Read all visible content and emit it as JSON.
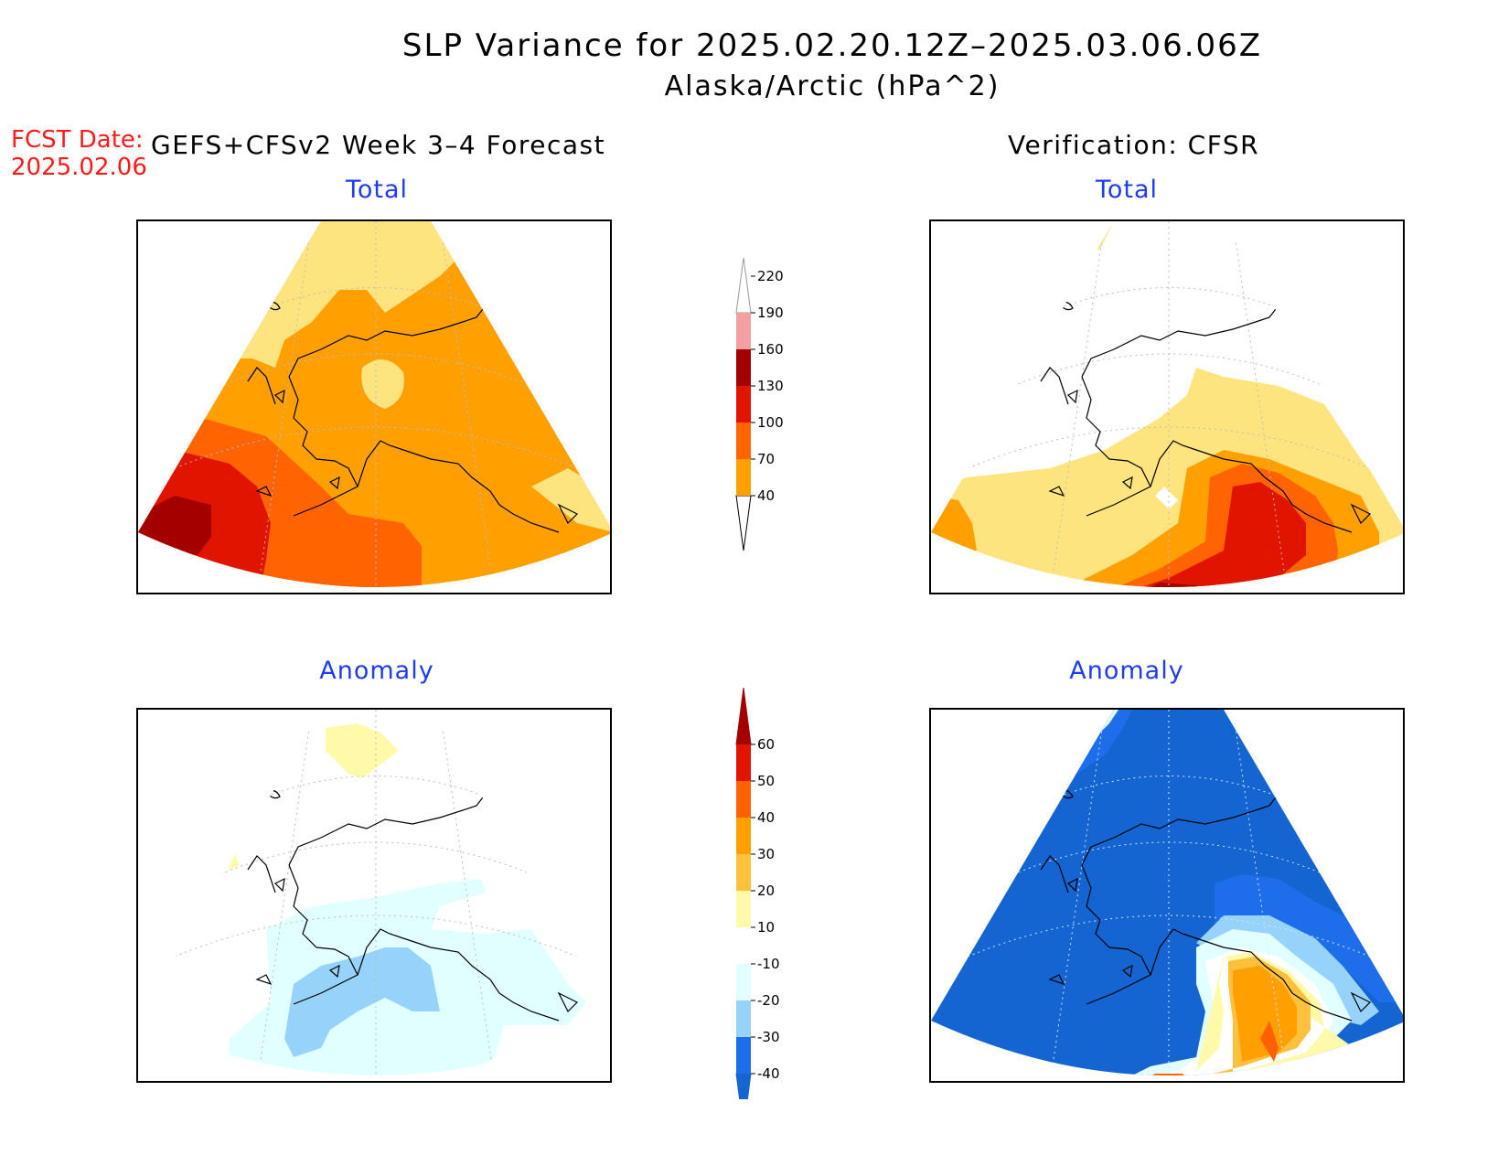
{
  "title": {
    "line1": "SLP Variance for 2025.02.20.12Z–2025.03.06.06Z",
    "line2": "Alaska/Arctic (hPa^2)"
  },
  "forecast_date": {
    "label": "FCST Date:",
    "value": "2025.02.06"
  },
  "columns": {
    "left": "GEFS+CFSv2 Week 3–4 Forecast",
    "right": "Verification: CFSR"
  },
  "panels": {
    "top_left": "Total",
    "top_right": "Total",
    "bottom_left": "Anomaly",
    "bottom_right": "Anomaly"
  },
  "colorbars": {
    "total": {
      "labels": [
        "40",
        "70",
        "100",
        "130",
        "160",
        "190",
        "220"
      ],
      "colors": [
        "#fde47f",
        "#ffa000",
        "#ff6400",
        "#e11400",
        "#a50000",
        "#f5a0a0",
        "#fde8e8"
      ]
    },
    "anomaly": {
      "labels": [
        "-40",
        "-30",
        "-20",
        "-10",
        "10",
        "20",
        "30",
        "40",
        "50",
        "60"
      ],
      "colors": [
        "#1464d2",
        "#1e6eeb",
        "#96d2fa",
        "#e1ffff",
        "#ffffff",
        "#fffaaa",
        "#ffc03c",
        "#ffa000",
        "#ff6000",
        "#e11400",
        "#a50000"
      ]
    }
  },
  "colors": {
    "forecast_date": "#ff1a1a",
    "panel_title": "#1f3cf5"
  }
}
